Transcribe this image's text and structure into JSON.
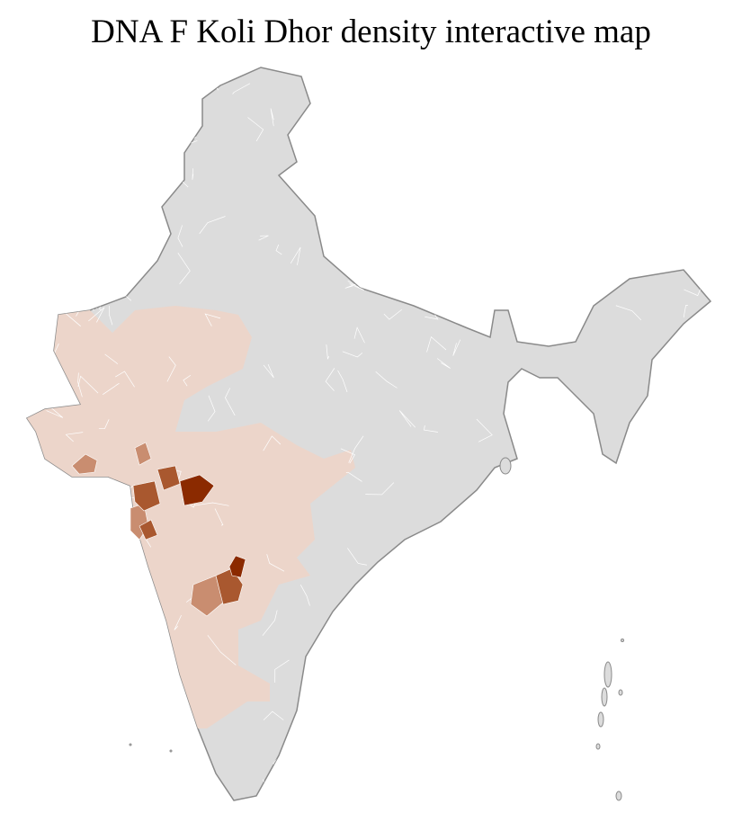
{
  "title": "DNA F Koli Dhor density interactive map",
  "colors": {
    "no_data": "#dcdcdc",
    "border": "#8a8a8a",
    "district_line": "#ffffff",
    "density_low": "#ecd5ca",
    "density_mid": "#c98d70",
    "density_high_mid": "#a9582f",
    "density_high": "#8b2a00"
  }
}
